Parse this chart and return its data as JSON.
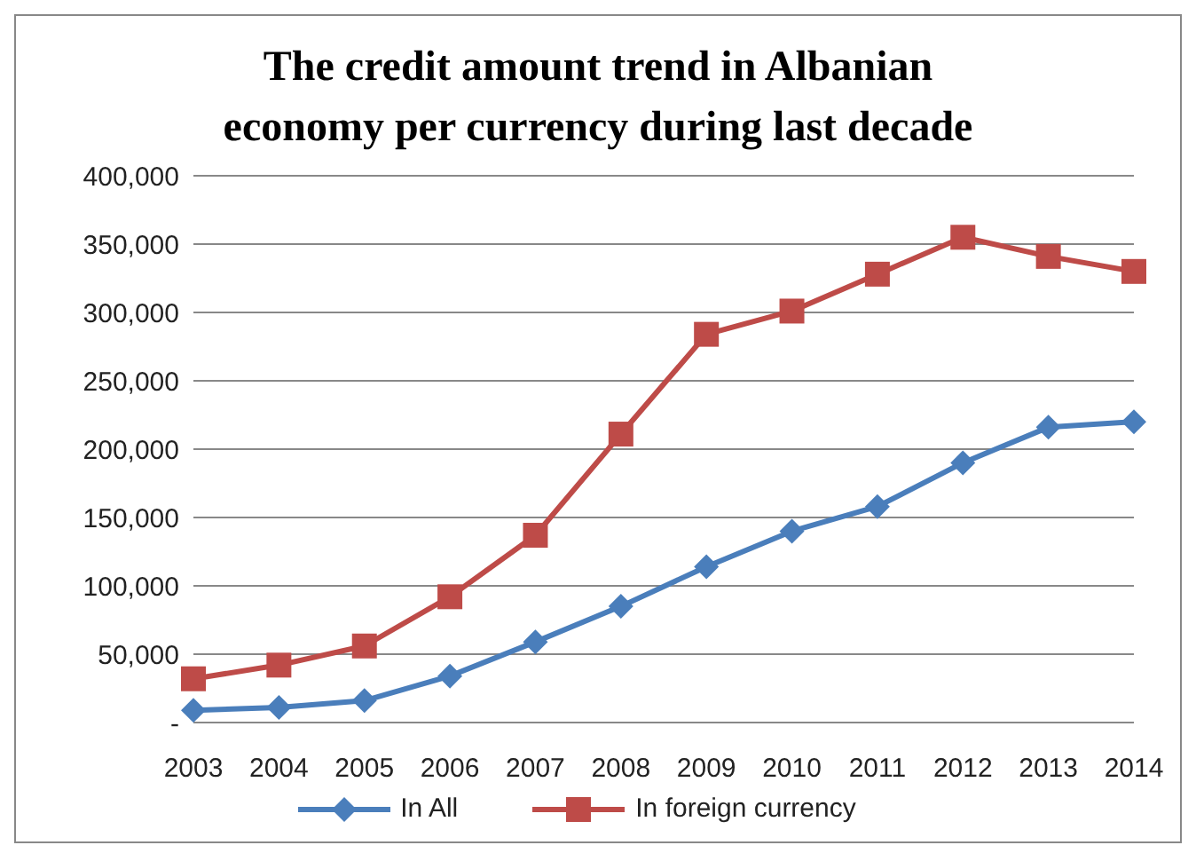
{
  "chart_data": {
    "type": "line",
    "title": "The credit amount trend in Albanian economy per currency during last decade",
    "categories": [
      "2003",
      "2004",
      "2005",
      "2006",
      "2007",
      "2008",
      "2009",
      "2010",
      "2011",
      "2012",
      "2013",
      "2014"
    ],
    "series": [
      {
        "name": "In All",
        "color": "#4a7ebb",
        "marker": "diamond",
        "values": [
          9000,
          11000,
          16000,
          34000,
          59000,
          85000,
          114000,
          140000,
          158000,
          190000,
          216000,
          220000
        ]
      },
      {
        "name": "In foreign currency",
        "color": "#be4b48",
        "marker": "square",
        "values": [
          32000,
          42000,
          56000,
          92000,
          137000,
          211000,
          284000,
          301000,
          328000,
          355000,
          341000,
          330000
        ]
      }
    ],
    "ylim": [
      0,
      400000
    ],
    "yticks": [
      {
        "value": 0,
        "label": "-"
      },
      {
        "value": 50000,
        "label": "50,000"
      },
      {
        "value": 100000,
        "label": "100,000"
      },
      {
        "value": 150000,
        "label": "150,000"
      },
      {
        "value": 200000,
        "label": "200,000"
      },
      {
        "value": 250000,
        "label": "250,000"
      },
      {
        "value": 300000,
        "label": "300,000"
      },
      {
        "value": 350000,
        "label": "350,000"
      },
      {
        "value": 400000,
        "label": "400,000"
      }
    ],
    "grid": "y",
    "legend": "bottom"
  }
}
